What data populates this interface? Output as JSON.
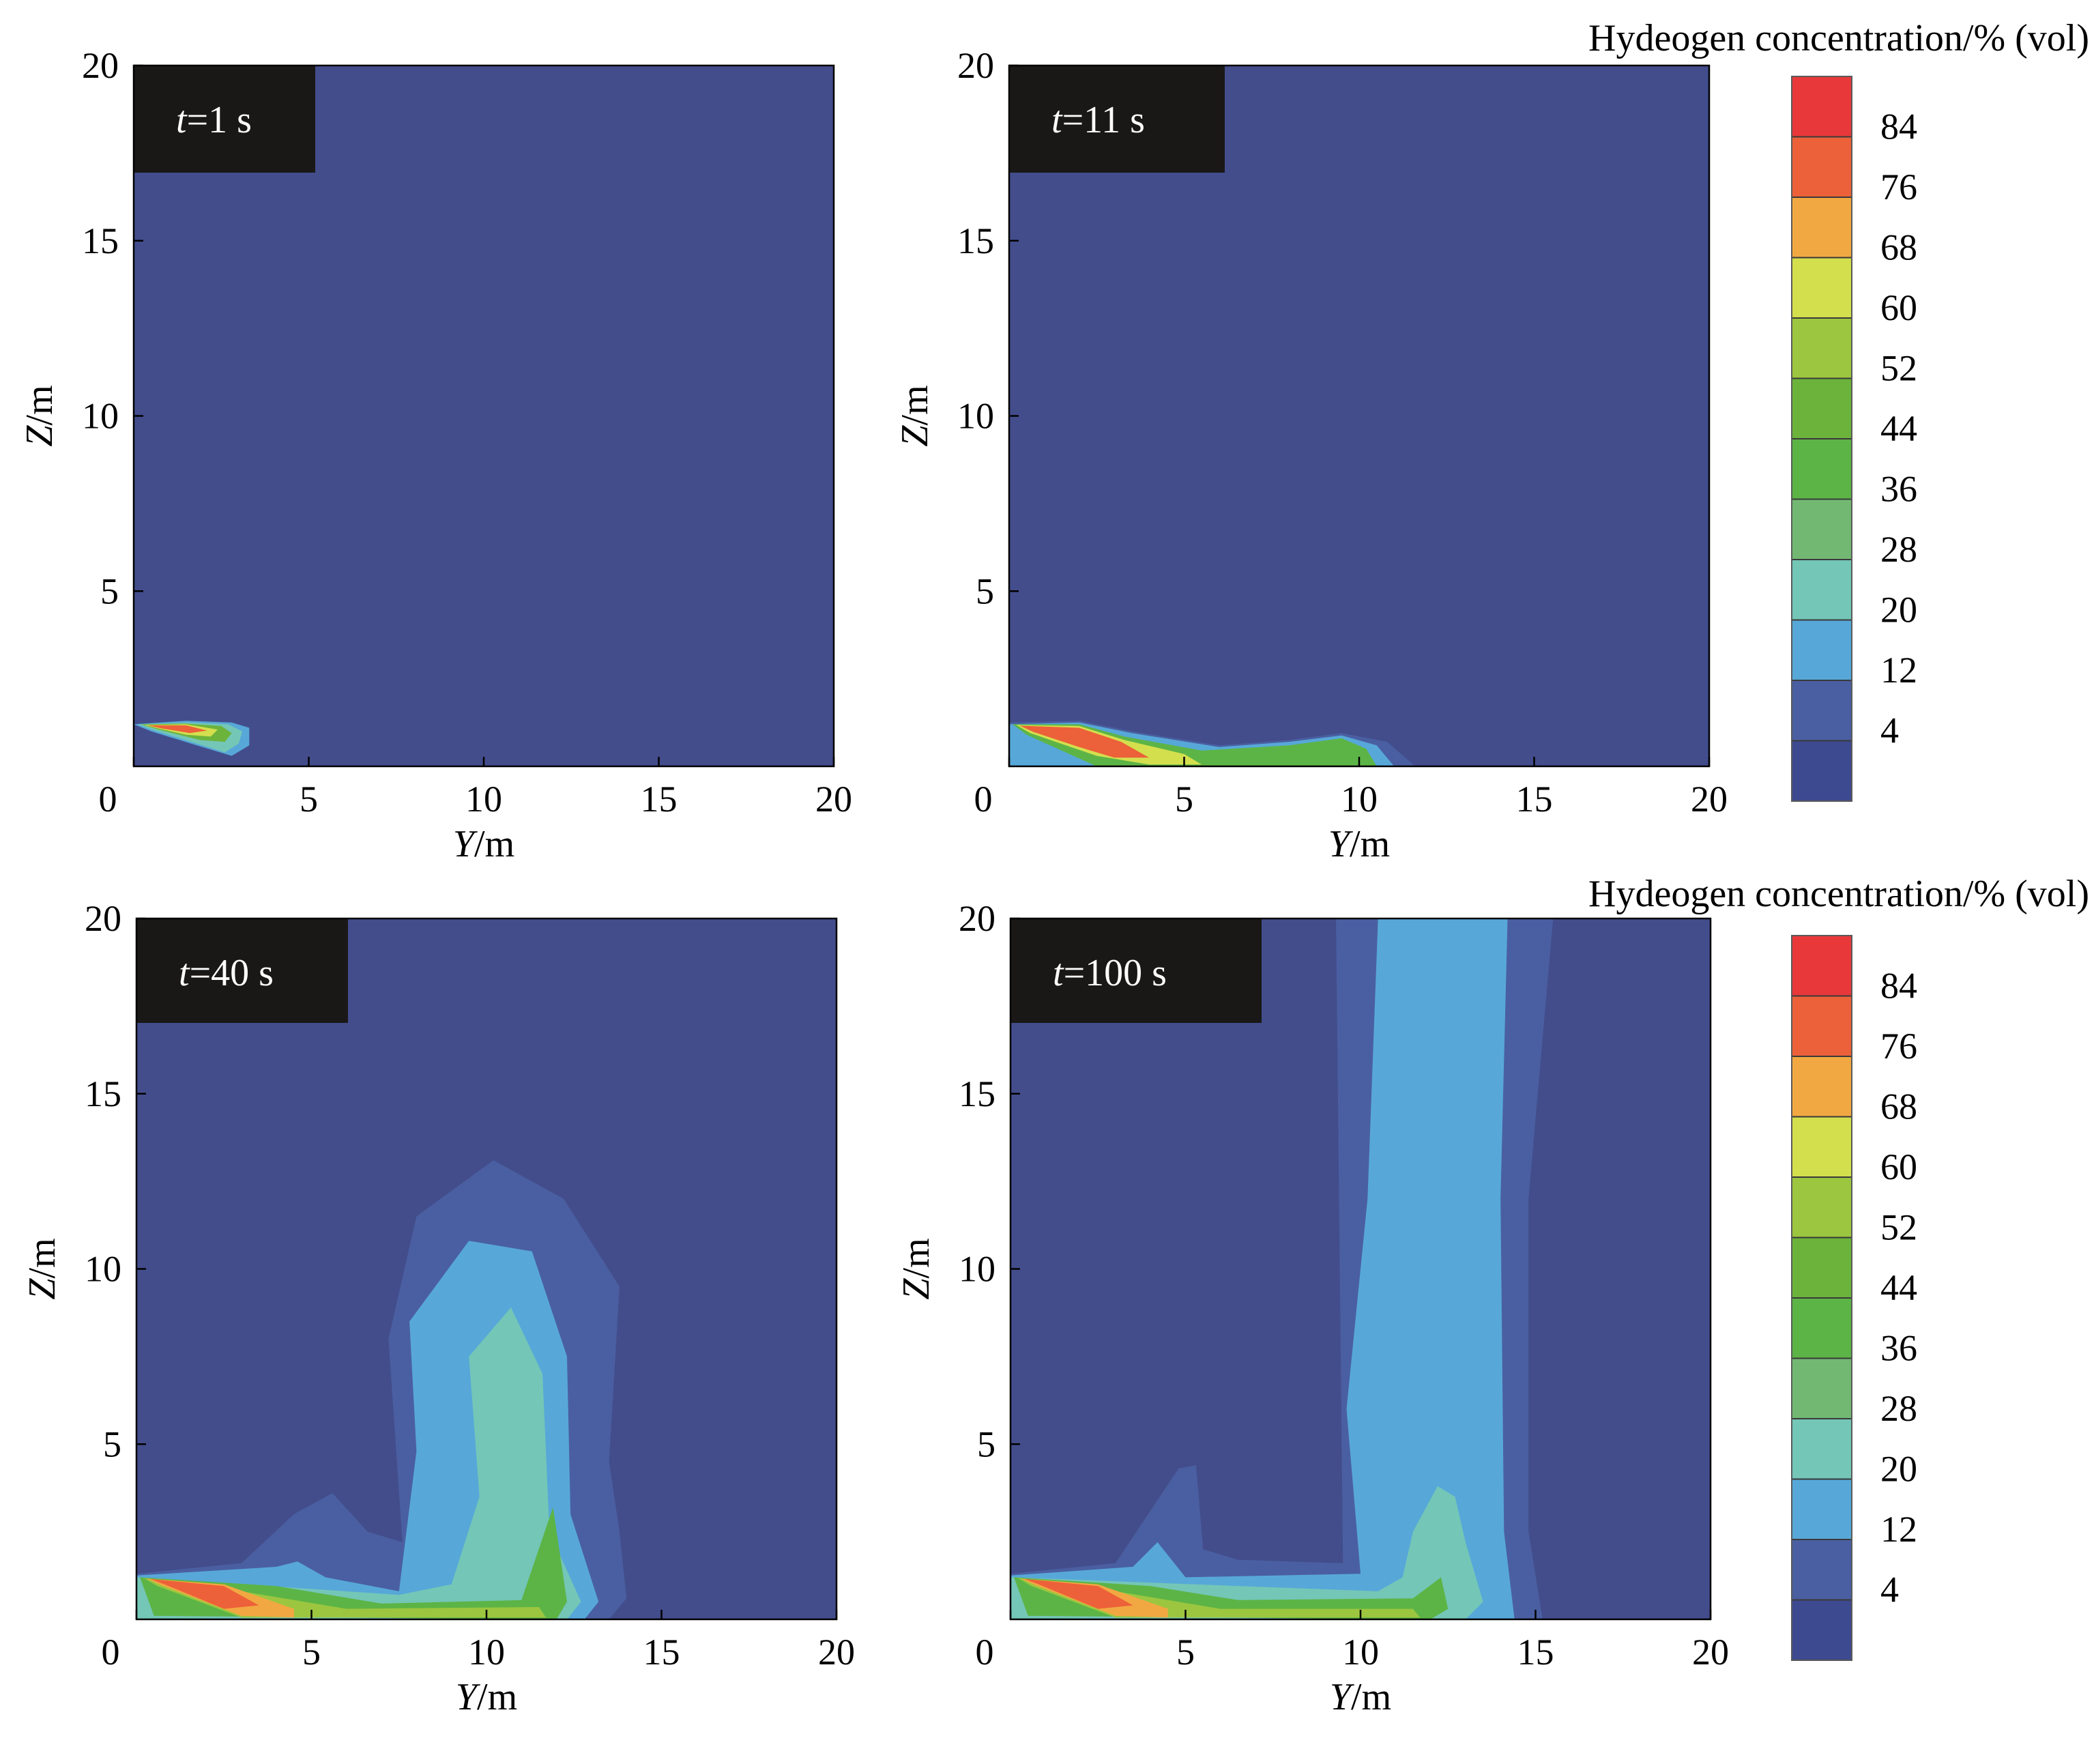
{
  "chart_data": [
    {
      "type": "heatmap",
      "time_label": {
        "symbol": "t",
        "rest": "=1 s"
      },
      "xlabel": {
        "symbol": "Y",
        "unit": "/m"
      },
      "ylabel": {
        "symbol": "Z",
        "unit": "/m"
      },
      "xlim": [
        0,
        20
      ],
      "ylim": [
        0,
        20
      ],
      "xticks": [
        "0",
        "5",
        "10",
        "15",
        "20"
      ],
      "yticks": [
        "5",
        "10",
        "15",
        "20"
      ],
      "plume_regions": [
        {
          "level": 20,
          "points": [
            [
              0,
              1.2
            ],
            [
              1.5,
              1.3
            ],
            [
              2.8,
              1.25
            ],
            [
              3.3,
              1.1
            ],
            [
              3.3,
              0.6
            ],
            [
              2.8,
              0.3
            ],
            [
              1.8,
              0.6
            ],
            [
              0.5,
              1.0
            ]
          ]
        },
        {
          "level": 28,
          "points": [
            [
              0.1,
              1.2
            ],
            [
              1.5,
              1.25
            ],
            [
              2.7,
              1.2
            ],
            [
              3.1,
              1.0
            ],
            [
              3.0,
              0.65
            ],
            [
              2.6,
              0.4
            ],
            [
              1.8,
              0.65
            ],
            [
              0.6,
              1.02
            ]
          ]
        },
        {
          "level": 52,
          "points": [
            [
              0.2,
              1.2
            ],
            [
              1.5,
              1.22
            ],
            [
              2.5,
              1.15
            ],
            [
              2.8,
              0.95
            ],
            [
              2.6,
              0.7
            ],
            [
              1.9,
              0.75
            ],
            [
              0.7,
              1.05
            ]
          ]
        },
        {
          "level": 68,
          "points": [
            [
              0.3,
              1.18
            ],
            [
              1.5,
              1.2
            ],
            [
              2.4,
              1.05
            ],
            [
              2.2,
              0.85
            ],
            [
              1.5,
              0.9
            ],
            [
              0.7,
              1.08
            ]
          ]
        },
        {
          "level": 84,
          "points": [
            [
              0.4,
              1.17
            ],
            [
              1.5,
              1.17
            ],
            [
              2.1,
              1.02
            ],
            [
              1.6,
              0.95
            ],
            [
              0.8,
              1.08
            ]
          ]
        }
      ]
    },
    {
      "type": "heatmap",
      "time_label": {
        "symbol": "t",
        "rest": "=11 s"
      },
      "xlabel": {
        "symbol": "Y",
        "unit": "/m"
      },
      "ylabel": {
        "symbol": "Z",
        "unit": "/m"
      },
      "xlim": [
        0,
        20
      ],
      "ylim": [
        0,
        20
      ],
      "xticks": [
        "0",
        "5",
        "10",
        "15",
        "20"
      ],
      "yticks": [
        "5",
        "10",
        "15",
        "20"
      ],
      "plume_regions": [
        {
          "level": 12,
          "points": [
            [
              0,
              1.25
            ],
            [
              2,
              1.3
            ],
            [
              3.5,
              1.0
            ],
            [
              6,
              0.6
            ],
            [
              8,
              0.75
            ],
            [
              9.5,
              0.95
            ],
            [
              10.8,
              0.7
            ],
            [
              11.6,
              0
            ],
            [
              0,
              0
            ]
          ]
        },
        {
          "level": 20,
          "points": [
            [
              0,
              1.2
            ],
            [
              2,
              1.25
            ],
            [
              3.5,
              0.95
            ],
            [
              6,
              0.55
            ],
            [
              8,
              0.7
            ],
            [
              9.5,
              0.88
            ],
            [
              10.5,
              0.6
            ],
            [
              11,
              0
            ],
            [
              0,
              0
            ]
          ]
        },
        {
          "level": 44,
          "points": [
            [
              0.1,
              1.2
            ],
            [
              2,
              1.2
            ],
            [
              3.3,
              0.85
            ],
            [
              5.5,
              0.45
            ],
            [
              8,
              0.6
            ],
            [
              9.5,
              0.8
            ],
            [
              10.2,
              0.5
            ],
            [
              10.5,
              0
            ],
            [
              2.5,
              0
            ],
            [
              0.5,
              0.9
            ]
          ]
        },
        {
          "level": 68,
          "points": [
            [
              0.2,
              1.18
            ],
            [
              2,
              1.15
            ],
            [
              3.3,
              0.75
            ],
            [
              5,
              0.35
            ],
            [
              5.5,
              0.05
            ],
            [
              4,
              0.05
            ],
            [
              2.5,
              0.3
            ],
            [
              0.6,
              0.95
            ]
          ]
        },
        {
          "level": 84,
          "points": [
            [
              0.3,
              1.16
            ],
            [
              2,
              1.1
            ],
            [
              3.2,
              0.7
            ],
            [
              4,
              0.25
            ],
            [
              3,
              0.25
            ],
            [
              2,
              0.55
            ],
            [
              0.7,
              0.98
            ]
          ]
        }
      ]
    },
    {
      "type": "heatmap",
      "time_label": {
        "symbol": "t",
        "rest": "=40 s"
      },
      "xlabel": {
        "symbol": "Y",
        "unit": "/m"
      },
      "ylabel": {
        "symbol": "Z",
        "unit": "/m"
      },
      "xlim": [
        0,
        20
      ],
      "ylim": [
        0,
        20
      ],
      "xticks": [
        "0",
        "5",
        "10",
        "15",
        "20"
      ],
      "yticks": [
        "5",
        "10",
        "15",
        "20"
      ],
      "plume_regions": [
        {
          "level": 12,
          "points": [
            [
              0,
              1.3
            ],
            [
              3,
              1.6
            ],
            [
              4.5,
              3.0
            ],
            [
              5.6,
              3.6
            ],
            [
              6.6,
              2.5
            ],
            [
              7.6,
              2.2
            ],
            [
              7.2,
              8.0
            ],
            [
              8.0,
              11.5
            ],
            [
              10.2,
              13.1
            ],
            [
              12.2,
              12.0
            ],
            [
              13.8,
              9.5
            ],
            [
              13.5,
              4.5
            ],
            [
              13.8,
              2.5
            ],
            [
              14.0,
              0.6
            ],
            [
              13.5,
              0
            ],
            [
              0,
              0
            ]
          ]
        },
        {
          "level": 20,
          "points": [
            [
              0,
              1.25
            ],
            [
              4,
              1.5
            ],
            [
              4.6,
              1.65
            ],
            [
              5.4,
              1.2
            ],
            [
              7.5,
              0.8
            ],
            [
              8.0,
              4.8
            ],
            [
              7.8,
              8.5
            ],
            [
              9.5,
              10.8
            ],
            [
              11.3,
              10.5
            ],
            [
              12.3,
              7.5
            ],
            [
              12.4,
              3.0
            ],
            [
              13.2,
              0.5
            ],
            [
              12.8,
              0
            ],
            [
              0,
              0
            ]
          ]
        },
        {
          "level": 28,
          "points": [
            [
              0,
              1.2
            ],
            [
              7.5,
              0.7
            ],
            [
              9.0,
              1.0
            ],
            [
              9.8,
              3.5
            ],
            [
              9.5,
              7.5
            ],
            [
              10.7,
              8.9
            ],
            [
              11.6,
              7.0
            ],
            [
              11.8,
              2.5
            ],
            [
              12.7,
              0.5
            ],
            [
              12.3,
              0
            ],
            [
              0,
              0
            ]
          ]
        },
        {
          "level": 44,
          "points": [
            [
              0.1,
              1.2
            ],
            [
              4,
              0.95
            ],
            [
              7,
              0.45
            ],
            [
              11,
              0.55
            ],
            [
              11.9,
              3.2
            ],
            [
              12.3,
              0.5
            ],
            [
              12,
              0
            ],
            [
              0.5,
              0.1
            ]
          ]
        },
        {
          "level": 60,
          "points": [
            [
              0.2,
              1.18
            ],
            [
              3,
              0.8
            ],
            [
              6,
              0.3
            ],
            [
              11.5,
              0.35
            ],
            [
              11.7,
              0.05
            ],
            [
              3,
              0.05
            ],
            [
              0.6,
              0.95
            ]
          ]
        },
        {
          "level": 76,
          "points": [
            [
              0.3,
              1.16
            ],
            [
              2.5,
              1.0
            ],
            [
              4.5,
              0.3
            ],
            [
              4.5,
              0.05
            ],
            [
              3,
              0.1
            ],
            [
              0.7,
              0.98
            ]
          ]
        },
        {
          "level": 84,
          "points": [
            [
              0.4,
              1.15
            ],
            [
              2.5,
              0.95
            ],
            [
              3.5,
              0.4
            ],
            [
              2.5,
              0.3
            ],
            [
              0.8,
              1.0
            ]
          ]
        }
      ]
    },
    {
      "type": "heatmap",
      "time_label": {
        "symbol": "t",
        "rest": "=100 s"
      },
      "xlabel": {
        "symbol": "Y",
        "unit": "/m"
      },
      "ylabel": {
        "symbol": "Z",
        "unit": "/m"
      },
      "xlim": [
        0,
        20
      ],
      "ylim": [
        0,
        20
      ],
      "xticks": [
        "0",
        "5",
        "10",
        "15",
        "20"
      ],
      "yticks": [
        "5",
        "10",
        "15",
        "20"
      ],
      "plume_regions": [
        {
          "level": 12,
          "points": [
            [
              0,
              1.3
            ],
            [
              3,
              1.6
            ],
            [
              4.8,
              4.3
            ],
            [
              5.3,
              4.4
            ],
            [
              5.5,
              2.0
            ],
            [
              6.5,
              1.7
            ],
            [
              9.5,
              1.6
            ],
            [
              9.3,
              20
            ],
            [
              15.5,
              20
            ],
            [
              14.8,
              12
            ],
            [
              14.8,
              2.5
            ],
            [
              15.2,
              0
            ],
            [
              0,
              0
            ]
          ]
        },
        {
          "level": 20,
          "points": [
            [
              0,
              1.25
            ],
            [
              3.5,
              1.5
            ],
            [
              4.2,
              2.2
            ],
            [
              5.0,
              1.2
            ],
            [
              10.0,
              1.3
            ],
            [
              9.6,
              6.0
            ],
            [
              10.2,
              12.0
            ],
            [
              10.5,
              20
            ],
            [
              14.2,
              20
            ],
            [
              14.0,
              12
            ],
            [
              14.1,
              2.5
            ],
            [
              14.4,
              0
            ],
            [
              0,
              0
            ]
          ]
        },
        {
          "level": 28,
          "points": [
            [
              0,
              1.2
            ],
            [
              10.5,
              0.8
            ],
            [
              11.2,
              1.2
            ],
            [
              11.5,
              2.5
            ],
            [
              12.2,
              3.8
            ],
            [
              12.7,
              3.5
            ],
            [
              13.0,
              2.2
            ],
            [
              13.5,
              0.5
            ],
            [
              13.0,
              0
            ],
            [
              0,
              0
            ]
          ]
        },
        {
          "level": 44,
          "points": [
            [
              0.1,
              1.2
            ],
            [
              4,
              0.95
            ],
            [
              6.5,
              0.55
            ],
            [
              11.5,
              0.6
            ],
            [
              12.3,
              1.2
            ],
            [
              12.5,
              0.3
            ],
            [
              12,
              0
            ],
            [
              0.5,
              0.1
            ]
          ]
        },
        {
          "level": 60,
          "points": [
            [
              0.2,
              1.18
            ],
            [
              3,
              0.8
            ],
            [
              6,
              0.3
            ],
            [
              11.5,
              0.3
            ],
            [
              11.7,
              0.05
            ],
            [
              3,
              0.05
            ],
            [
              0.6,
              0.95
            ]
          ]
        },
        {
          "level": 76,
          "points": [
            [
              0.3,
              1.16
            ],
            [
              2.5,
              1.0
            ],
            [
              4.5,
              0.3
            ],
            [
              4.5,
              0.05
            ],
            [
              3,
              0.1
            ],
            [
              0.7,
              0.98
            ]
          ]
        },
        {
          "level": 84,
          "points": [
            [
              0.4,
              1.15
            ],
            [
              2.5,
              0.95
            ],
            [
              3.5,
              0.4
            ],
            [
              2.5,
              0.3
            ],
            [
              0.8,
              1.0
            ]
          ]
        }
      ]
    }
  ],
  "colorbar": {
    "title": "Hydeogen concentration/% (vol)",
    "labels": [
      "84",
      "76",
      "68",
      "60",
      "52",
      "44",
      "36",
      "28",
      "20",
      "12",
      "4"
    ],
    "bands": [
      {
        "level": 90,
        "color": "#e8383a"
      },
      {
        "level": 84,
        "color": "#ec6139"
      },
      {
        "level": 76,
        "color": "#f2a842"
      },
      {
        "level": 68,
        "color": "#d4df4e"
      },
      {
        "level": 60,
        "color": "#9cc63f"
      },
      {
        "level": 52,
        "color": "#6cb33c"
      },
      {
        "level": 44,
        "color": "#5cb446"
      },
      {
        "level": 36,
        "color": "#72b873"
      },
      {
        "level": 28,
        "color": "#74c6b7"
      },
      {
        "level": 20,
        "color": "#57a8d8"
      },
      {
        "level": 12,
        "color": "#4a5fa1"
      },
      {
        "level": 4,
        "color": "#3d4a8f"
      }
    ],
    "background_color": "#434d8c",
    "label_box_color": "#1a1816"
  }
}
